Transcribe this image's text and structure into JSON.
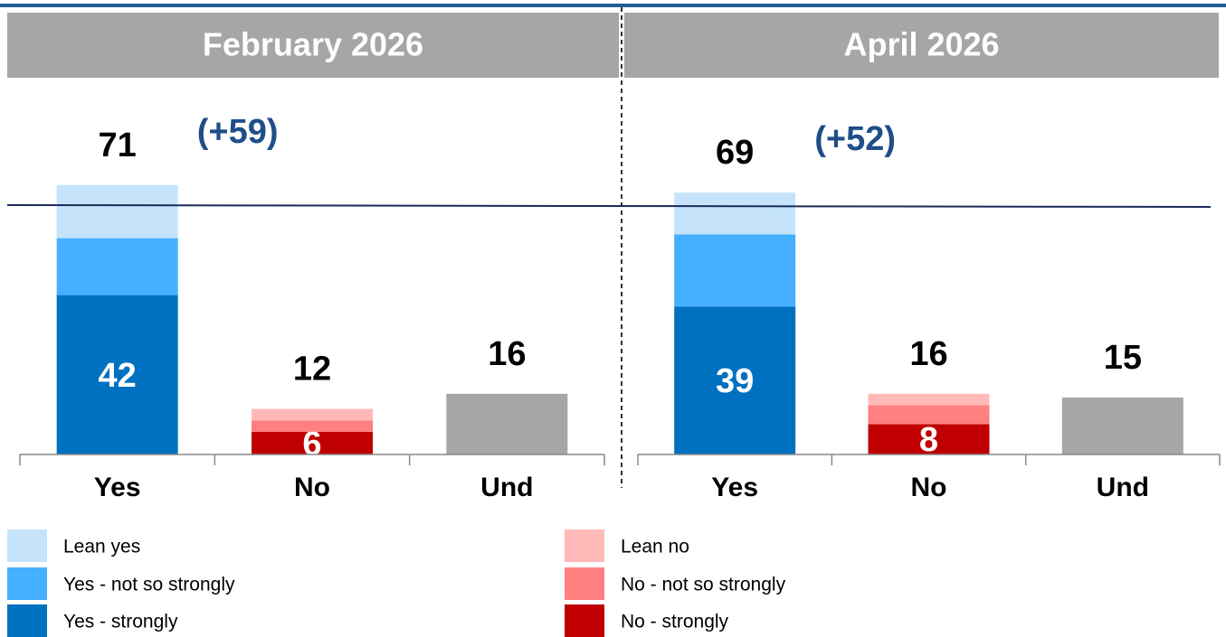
{
  "chart_data": [
    {
      "type": "bar",
      "stacked": true,
      "title": "February 2026",
      "net_label": "(+59)",
      "categories": [
        "Yes",
        "No",
        "Und"
      ],
      "ylim": [
        0,
        80
      ],
      "totals": [
        71,
        12,
        16
      ],
      "series": [
        {
          "name": "Yes - strongly",
          "color": "#0070c0",
          "values": [
            42,
            null,
            null
          ]
        },
        {
          "name": "Yes - not so strongly",
          "color": "#44b0ff",
          "values": [
            15,
            null,
            null
          ]
        },
        {
          "name": "Lean yes",
          "color": "#c5e4fb",
          "values": [
            14,
            null,
            null
          ]
        },
        {
          "name": "No - strongly",
          "color": "#c00000",
          "values": [
            null,
            6,
            null
          ]
        },
        {
          "name": "No - not so strongly",
          "color": "#ff8080",
          "values": [
            null,
            3,
            null
          ]
        },
        {
          "name": "Lean no",
          "color": "#ffb9b9",
          "values": [
            null,
            3,
            null
          ]
        },
        {
          "color": "#a6a6a6",
          "values": [
            null,
            null,
            16
          ]
        }
      ]
    },
    {
      "type": "bar",
      "stacked": true,
      "title": "April 2026",
      "net_label": "(+52)",
      "categories": [
        "Yes",
        "No",
        "Und"
      ],
      "ylim": [
        0,
        80
      ],
      "totals": [
        69,
        16,
        15
      ],
      "series": [
        {
          "name": "Yes - strongly",
          "color": "#0070c0",
          "values": [
            39,
            null,
            null
          ]
        },
        {
          "name": "Yes - not so strongly",
          "color": "#44b0ff",
          "values": [
            19,
            null,
            null
          ]
        },
        {
          "name": "Lean yes",
          "color": "#c5e4fb",
          "values": [
            11,
            null,
            null
          ]
        },
        {
          "name": "No - strongly",
          "color": "#c00000",
          "values": [
            null,
            8,
            null
          ]
        },
        {
          "name": "No - not so strongly",
          "color": "#ff8080",
          "values": [
            null,
            5,
            null
          ]
        },
        {
          "name": "Lean no",
          "color": "#ffb9b9",
          "values": [
            null,
            3,
            null
          ]
        },
        {
          "color": "#a6a6a6",
          "values": [
            null,
            null,
            15
          ]
        }
      ]
    }
  ]
}
